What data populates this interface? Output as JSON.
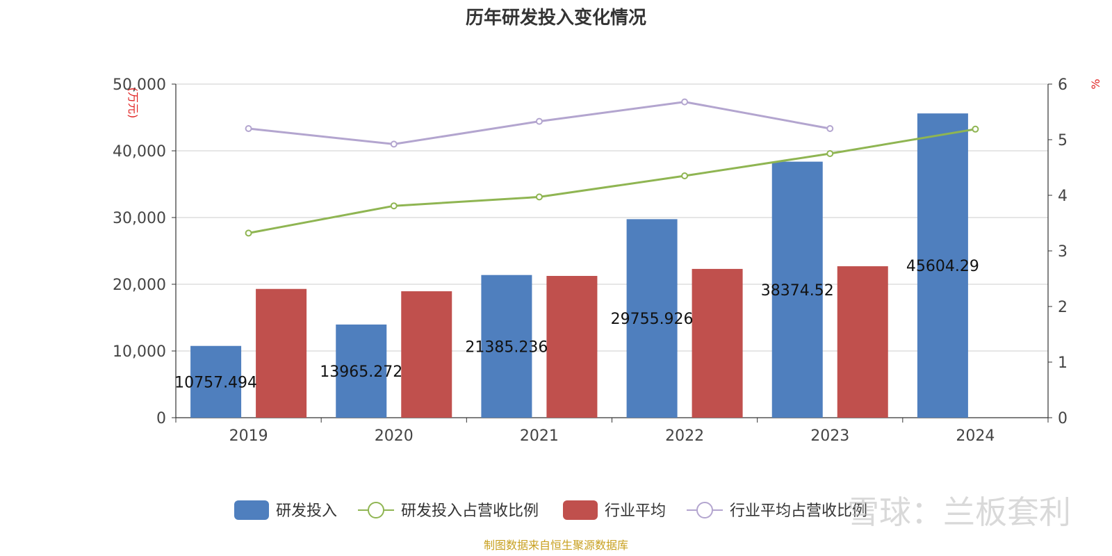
{
  "chart_data": {
    "type": "bar",
    "title": "历年研发投入变化情况",
    "categories": [
      "2019",
      "2020",
      "2021",
      "2022",
      "2023",
      "2024"
    ],
    "y_left": {
      "unit": "(万元)",
      "range": [
        0,
        50000
      ],
      "ticks": [
        "0",
        "10,000",
        "20,000",
        "30,000",
        "40,000",
        "50,000"
      ]
    },
    "y_right": {
      "unit": "%",
      "range": [
        0,
        6
      ],
      "ticks": [
        "0",
        "1",
        "2",
        "3",
        "4",
        "5",
        "6"
      ]
    },
    "grid": true,
    "legend_position": "bottom",
    "series": [
      {
        "name": "研发投入",
        "kind": "bar",
        "axis": "left",
        "color": "#4f7fbe",
        "values": [
          10757.494,
          13965.272,
          21385.236,
          29755.926,
          38374.52,
          45604.29
        ],
        "labels": [
          "10757.494",
          "13965.272",
          "21385.236",
          "29755.926",
          "38374.52",
          "45604.29"
        ]
      },
      {
        "name": "研发投入占营收比例",
        "kind": "line",
        "axis": "right",
        "color": "#8fb552",
        "values": [
          3.32,
          3.81,
          3.97,
          4.35,
          4.75,
          5.19
        ]
      },
      {
        "name": "行业平均",
        "kind": "bar",
        "axis": "left",
        "color": "#c0504d",
        "values": [
          19300,
          18950,
          21250,
          22300,
          22700,
          null
        ]
      },
      {
        "name": "行业平均占营收比例",
        "kind": "line",
        "axis": "right",
        "color": "#b3a5cf",
        "values": [
          5.2,
          4.92,
          5.33,
          5.68,
          5.2,
          null
        ]
      }
    ],
    "source": "制图数据来自恒生聚源数据库",
    "watermark": "雪球：兰板套利"
  }
}
